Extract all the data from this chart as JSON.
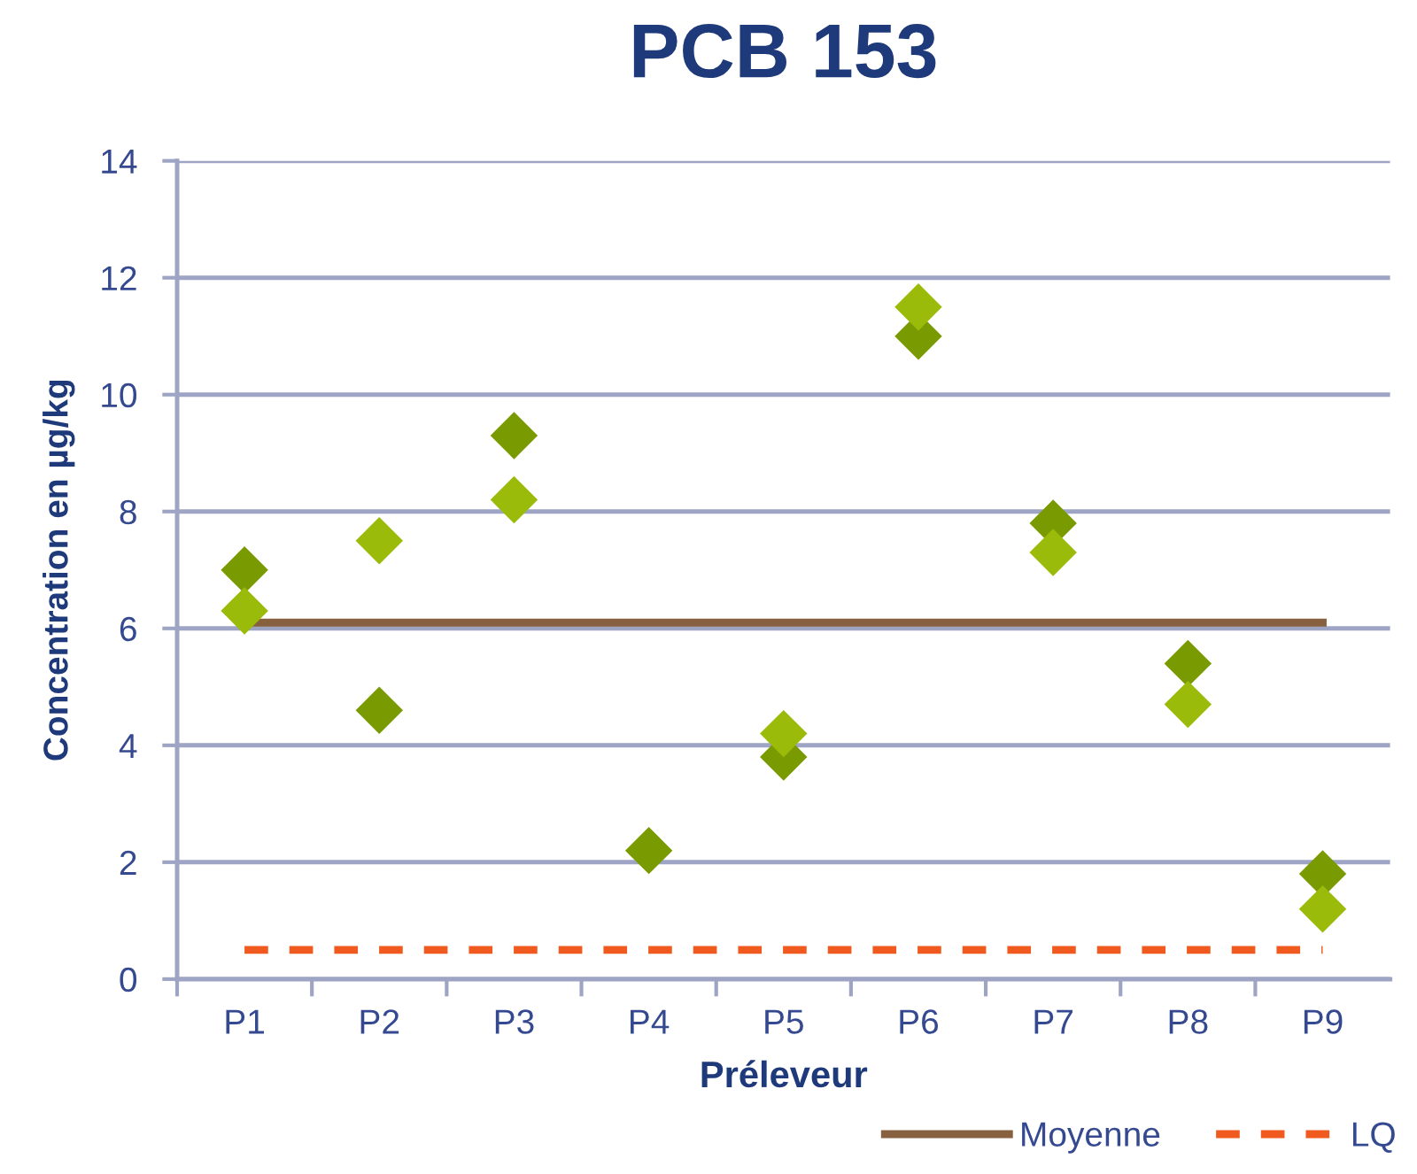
{
  "chart_data": {
    "type": "scatter",
    "title": "PCB 153",
    "xlabel": "Préleveur",
    "ylabel": "Concentration en µg/kg",
    "categories": [
      "P1",
      "P2",
      "P3",
      "P4",
      "P5",
      "P6",
      "P7",
      "P8",
      "P9"
    ],
    "series": [
      {
        "type": "line",
        "name": "Moyenne",
        "color": "#86603f",
        "line_style": "solid",
        "marker": "none",
        "values": [
          6.1,
          6.1,
          6.1,
          6.1,
          6.1,
          6.1,
          6.1,
          6.1,
          6.1
        ]
      },
      {
        "type": "line",
        "name": "LQ",
        "color": "#f05a1e",
        "line_style": "dashed",
        "marker": "none",
        "values": [
          0.5,
          0.5,
          0.5,
          0.5,
          0.5,
          0.5,
          0.5,
          0.5,
          0.5
        ]
      },
      {
        "color": "#7a9a01",
        "values": [
          7.0,
          4.6,
          9.3,
          2.2,
          3.8,
          11.0,
          7.8,
          5.4,
          1.8
        ]
      },
      {
        "color": "#9bbb0a",
        "values": [
          6.3,
          7.5,
          8.2,
          null,
          4.2,
          11.5,
          7.3,
          4.7,
          1.2
        ]
      }
    ],
    "ylim": [
      0,
      14
    ],
    "yticks": [
      0,
      2,
      4,
      6,
      8,
      10,
      12,
      14
    ],
    "grid": "y",
    "legend": "bottom right",
    "marker": "diamond"
  }
}
